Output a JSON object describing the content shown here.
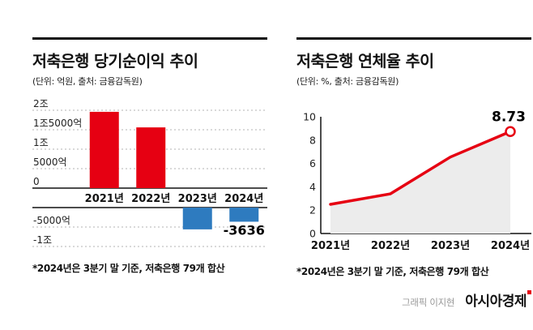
{
  "credit": {
    "prefix": "그래픽 이지현",
    "brand": "아시아경제"
  },
  "chart_data": [
    {
      "type": "bar",
      "title": "저축은행 당기순이익 추이",
      "unit_source": "(단위: 억원, 출처: 금융감독원)",
      "categories": [
        "2021년",
        "2022년",
        "2023년",
        "2024년"
      ],
      "values": [
        19600,
        15600,
        -5600,
        -3636
      ],
      "ylim": [
        -10000,
        20000
      ],
      "y_ticks": [
        {
          "value": 20000,
          "label": "2조"
        },
        {
          "value": 15000,
          "label": "1조5000억"
        },
        {
          "value": 10000,
          "label": "1조"
        },
        {
          "value": 5000,
          "label": "5000억"
        },
        {
          "value": 0,
          "label": "0"
        },
        {
          "value": -5000,
          "label": "-5000억"
        },
        {
          "value": -10000,
          "label": "-1조"
        }
      ],
      "bar_colors": {
        "positive": "#e60012",
        "negative": "#2e7bbf"
      },
      "data_labels": [
        {
          "category": "2024년",
          "text": "-3636"
        }
      ],
      "grid": "dotted-horizontal",
      "legend": "none",
      "footnote": "*2024년은 3분기 말 기준, 저축은행 79개 합산"
    },
    {
      "type": "line",
      "title": "저축은행 연체율 추이",
      "unit_source": "(단위: %, 출처: 금융감독원)",
      "categories": [
        "2021년",
        "2022년",
        "2023년",
        "2024년"
      ],
      "values": [
        2.5,
        3.4,
        6.55,
        8.73
      ],
      "ylim": [
        0,
        10
      ],
      "y_ticks": [
        0,
        2,
        4,
        6,
        8,
        10
      ],
      "line_color": "#e60012",
      "area_color": "#ececec",
      "end_marker": "open-circle",
      "end_label": "8.73",
      "grid": "none",
      "legend": "none",
      "footnote": "*2024년은 3분기 말 기준, 저축은행 79개 합산"
    }
  ]
}
